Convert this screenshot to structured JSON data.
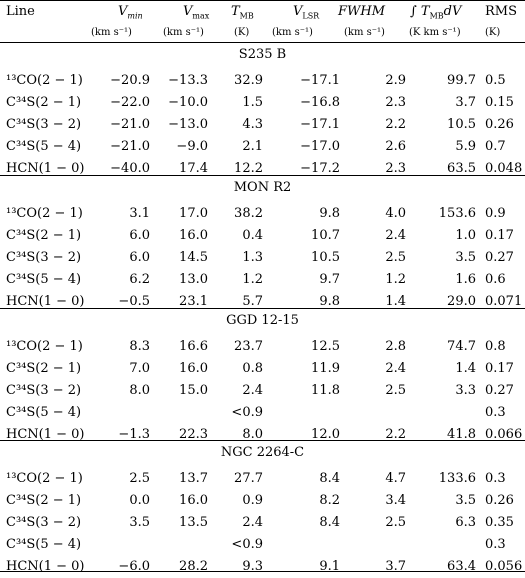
{
  "header": {
    "line": "Line",
    "vmin": "V",
    "vmin_sub": "min",
    "vmax": "V",
    "vmax_sub": "max",
    "tmb": "T",
    "tmb_sub": "MB",
    "vlsr": "V",
    "vlsr_sub": "LSR",
    "fwhm": "FWHM",
    "integral": "∫ T",
    "integral_sub": "MB",
    "integral_tail": "dV",
    "rms": "RMS"
  },
  "units": {
    "vmin": "(km s⁻¹)",
    "vmax": "(km s⁻¹)",
    "tmb": "(K)",
    "vlsr": "(km s⁻¹)",
    "fwhm": "(km s⁻¹)",
    "integral": "(K km s⁻¹)",
    "rms": "(K)"
  },
  "sections": [
    {
      "name": "S235 B",
      "rows": [
        {
          "line": "¹³CO(2 − 1)",
          "vmin": "−20.9",
          "vmax": "−13.3",
          "tmb": "32.9",
          "vlsr": "−17.1",
          "fwhm": "2.9",
          "integral": "99.7",
          "rms": "0.5"
        },
        {
          "line": "C³⁴S(2 − 1)",
          "vmin": "−22.0",
          "vmax": "−10.0",
          "tmb": "1.5",
          "vlsr": "−16.8",
          "fwhm": "2.3",
          "integral": "3.7",
          "rms": "0.15"
        },
        {
          "line": "C³⁴S(3 − 2)",
          "vmin": "−21.0",
          "vmax": "−13.0",
          "tmb": "4.3",
          "vlsr": "−17.1",
          "fwhm": "2.2",
          "integral": "10.5",
          "rms": "0.26"
        },
        {
          "line": "C³⁴S(5 − 4)",
          "vmin": "−21.0",
          "vmax": "−9.0",
          "tmb": "2.1",
          "vlsr": "−17.0",
          "fwhm": "2.6",
          "integral": "5.9",
          "rms": "0.7"
        },
        {
          "line": "HCN(1 − 0)",
          "vmin": "−40.0",
          "vmax": "17.4",
          "tmb": "12.2",
          "vlsr": "−17.2",
          "fwhm": "2.3",
          "integral": "63.5",
          "rms": "0.048"
        }
      ]
    },
    {
      "name": "MON R2",
      "rows": [
        {
          "line": "¹³CO(2 − 1)",
          "vmin": "3.1",
          "vmax": "17.0",
          "tmb": "38.2",
          "vlsr": "9.8",
          "fwhm": "4.0",
          "integral": "153.6",
          "rms": "0.9"
        },
        {
          "line": "C³⁴S(2 − 1)",
          "vmin": "6.0",
          "vmax": "16.0",
          "tmb": "0.4",
          "vlsr": "10.7",
          "fwhm": "2.4",
          "integral": "1.0",
          "rms": "0.17"
        },
        {
          "line": "C³⁴S(3 − 2)",
          "vmin": "6.0",
          "vmax": "14.5",
          "tmb": "1.3",
          "vlsr": "10.5",
          "fwhm": "2.5",
          "integral": "3.5",
          "rms": "0.27"
        },
        {
          "line": "C³⁴S(5 − 4)",
          "vmin": "6.2",
          "vmax": "13.0",
          "tmb": "1.2",
          "vlsr": "9.7",
          "fwhm": "1.2",
          "integral": "1.6",
          "rms": "0.6"
        },
        {
          "line": "HCN(1 − 0)",
          "vmin": "−0.5",
          "vmax": "23.1",
          "tmb": "5.7",
          "vlsr": "9.8",
          "fwhm": "1.4",
          "integral": "29.0",
          "rms": "0.071"
        }
      ]
    },
    {
      "name": "GGD 12-15",
      "rows": [
        {
          "line": "¹³CO(2 − 1)",
          "vmin": "8.3",
          "vmax": "16.6",
          "tmb": "23.7",
          "vlsr": "12.5",
          "fwhm": "2.8",
          "integral": "74.7",
          "rms": "0.8"
        },
        {
          "line": "C³⁴S(2 − 1)",
          "vmin": "7.0",
          "vmax": "16.0",
          "tmb": "0.8",
          "vlsr": "11.9",
          "fwhm": "2.4",
          "integral": "1.4",
          "rms": "0.17"
        },
        {
          "line": "C³⁴S(3 − 2)",
          "vmin": "8.0",
          "vmax": "15.0",
          "tmb": "2.4",
          "vlsr": "11.8",
          "fwhm": "2.5",
          "integral": "3.3",
          "rms": "0.27"
        },
        {
          "line": "C³⁴S(5 − 4)",
          "vmin": "",
          "vmax": "",
          "tmb": "<0.9",
          "vlsr": "",
          "fwhm": "",
          "integral": "",
          "rms": "0.3"
        },
        {
          "line": "HCN(1 − 0)",
          "vmin": "−1.3",
          "vmax": "22.3",
          "tmb": "8.0",
          "vlsr": "12.0",
          "fwhm": "2.2",
          "integral": "41.8",
          "rms": "0.066"
        }
      ]
    },
    {
      "name": "NGC 2264-C",
      "rows": [
        {
          "line": "¹³CO(2 − 1)",
          "vmin": "2.5",
          "vmax": "13.7",
          "tmb": "27.7",
          "vlsr": "8.4",
          "fwhm": "4.7",
          "integral": "133.6",
          "rms": "0.3"
        },
        {
          "line": "C³⁴S(2 − 1)",
          "vmin": "0.0",
          "vmax": "16.0",
          "tmb": "0.9",
          "vlsr": "8.2",
          "fwhm": "3.4",
          "integral": "3.5",
          "rms": "0.26"
        },
        {
          "line": "C³⁴S(3 − 2)",
          "vmin": "3.5",
          "vmax": "13.5",
          "tmb": "2.4",
          "vlsr": "8.4",
          "fwhm": "2.5",
          "integral": "6.3",
          "rms": "0.35"
        },
        {
          "line": "C³⁴S(5 − 4)",
          "vmin": "",
          "vmax": "",
          "tmb": "<0.9",
          "vlsr": "",
          "fwhm": "",
          "integral": "",
          "rms": "0.3"
        },
        {
          "line": "HCN(1 − 0)",
          "vmin": "−6.0",
          "vmax": "28.2",
          "tmb": "9.3",
          "vlsr": "9.1",
          "fwhm": "3.7",
          "integral": "63.4",
          "rms": "0.056"
        }
      ]
    }
  ]
}
